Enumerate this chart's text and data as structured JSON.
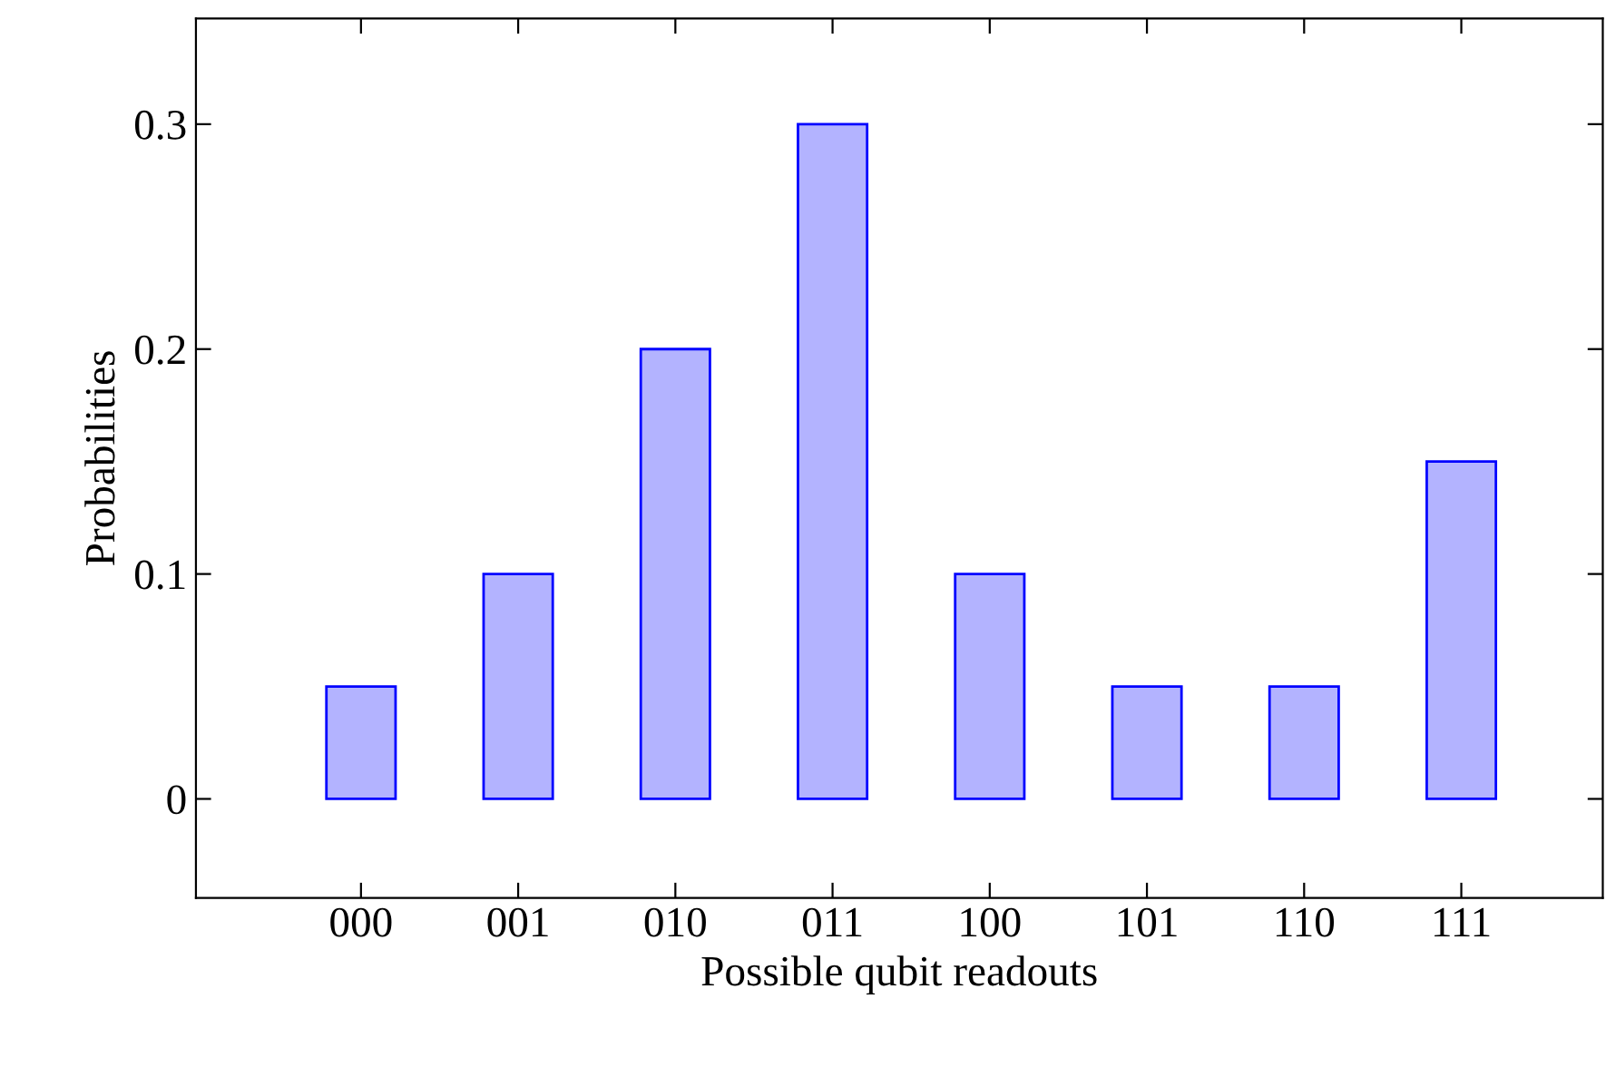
{
  "chart_data": {
    "type": "bar",
    "xlabel": "Possible qubit readouts",
    "ylabel": "Probabilities",
    "categories": [
      "000",
      "001",
      "010",
      "011",
      "100",
      "101",
      "110",
      "111"
    ],
    "values": [
      0.05,
      0.1,
      0.2,
      0.3,
      0.1,
      0.05,
      0.05,
      0.15
    ],
    "color": "#b3b3ff",
    "ylim": [
      -0.044,
      0.347
    ],
    "yticks": [
      0,
      0.1,
      0.2,
      0.3
    ],
    "grid": false
  }
}
